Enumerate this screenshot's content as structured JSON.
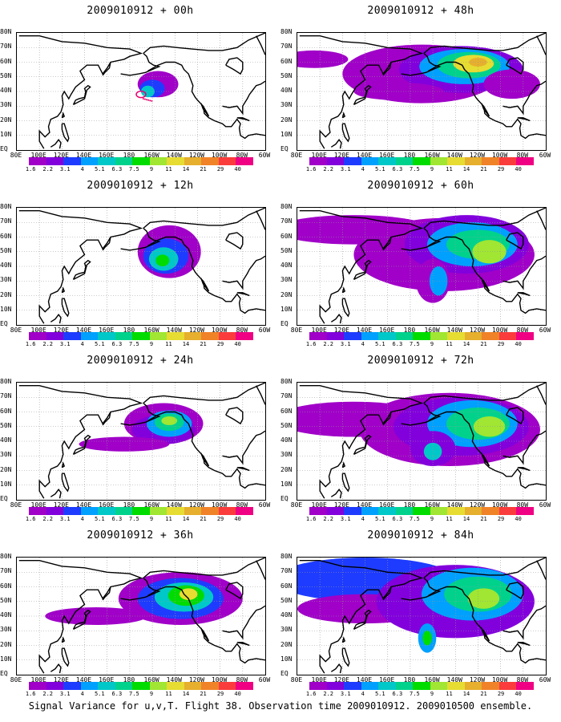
{
  "panels": [
    {
      "id": "p00",
      "title": "2009010912 + 00h",
      "lead": 0
    },
    {
      "id": "p48",
      "title": "2009010912 + 48h",
      "lead": 48
    },
    {
      "id": "p12",
      "title": "2009010912 + 12h",
      "lead": 12
    },
    {
      "id": "p60",
      "title": "2009010912 + 60h",
      "lead": 60
    },
    {
      "id": "p24",
      "title": "2009010912 + 24h",
      "lead": 24
    },
    {
      "id": "p72",
      "title": "2009010912 + 72h",
      "lead": 72
    },
    {
      "id": "p36",
      "title": "2009010912 + 36h",
      "lead": 36
    },
    {
      "id": "p84",
      "title": "2009010912 + 84h",
      "lead": 84
    }
  ],
  "lat_labels": [
    "80N",
    "70N",
    "60N",
    "50N",
    "40N",
    "30N",
    "20N",
    "10N",
    "EQ"
  ],
  "lon_labels": [
    "80E",
    "100E",
    "120E",
    "140E",
    "160E",
    "180",
    "160W",
    "140W",
    "120W",
    "100W",
    "80W",
    "60W"
  ],
  "colorbar": {
    "labels": [
      "1.6",
      "2.2",
      "3.1",
      "4",
      "5.1",
      "6.3",
      "7.5",
      "9",
      "11",
      "14",
      "21",
      "29",
      "40"
    ],
    "colors": [
      "#a000c8",
      "#8200dc",
      "#1e3cff",
      "#00a0ff",
      "#00c8c8",
      "#00d28c",
      "#00dc00",
      "#a0e632",
      "#e6dc32",
      "#e6af2d",
      "#f08228",
      "#fa3c3c",
      "#f00082"
    ]
  },
  "footer": "Signal Variance for u,v,T. Flight 38. Observation time 2009010912. 2009010500 ensemble."
}
